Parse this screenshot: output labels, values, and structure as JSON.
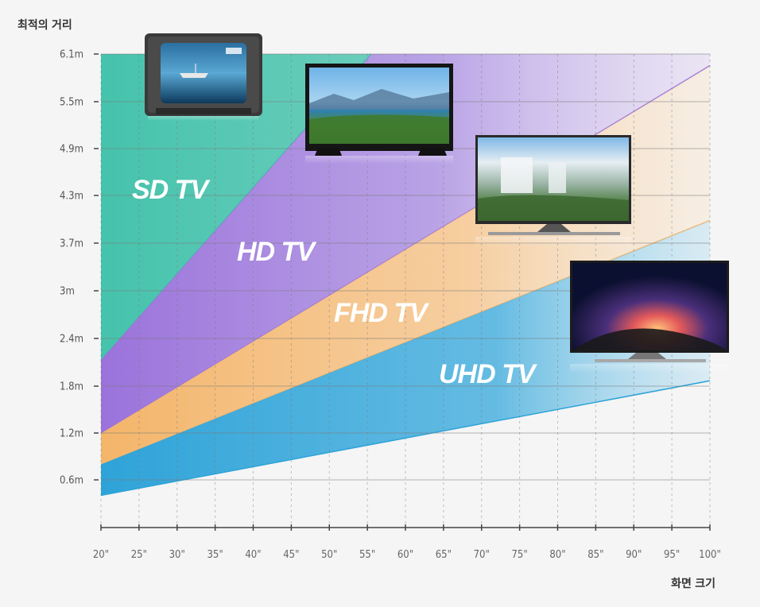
{
  "chart_data": {
    "type": "area",
    "ylabel": "최적의 거리",
    "xlabel": "화면 크기",
    "x_ticks": [
      "20\"",
      "25\"",
      "30\"",
      "35\"",
      "40\"",
      "45\"",
      "50\"",
      "55\"",
      "60\"",
      "65\"",
      "70\"",
      "75\"",
      "80\"",
      "85\"",
      "90\"",
      "95\"",
      "100\""
    ],
    "y_ticks": [
      "0.6m",
      "1.2m",
      "1.8m",
      "2.4m",
      "3m",
      "3.7m",
      "4.3m",
      "4.9m",
      "5.5m",
      "6.1m"
    ],
    "xlim": [
      20,
      100
    ],
    "ylim": [
      0,
      6.1
    ],
    "zones": [
      {
        "name": "SD TV",
        "color": "#3cc0a8",
        "upper": [
          [
            20,
            6.1
          ],
          [
            100,
            6.1
          ]
        ],
        "lower": [
          [
            20,
            2.15
          ],
          [
            55.5,
            6.1
          ]
        ]
      },
      {
        "name": "HD TV",
        "color": "#9b72db",
        "upper": [
          [
            20,
            2.15
          ],
          [
            55.5,
            6.1
          ],
          [
            100,
            6.1
          ]
        ],
        "lower": [
          [
            20,
            1.2
          ],
          [
            100,
            5.95
          ]
        ]
      },
      {
        "name": "FHD TV",
        "color": "#f4b56a",
        "upper": [
          [
            20,
            1.2
          ],
          [
            100,
            5.95
          ]
        ],
        "lower": [
          [
            20,
            0.8
          ],
          [
            100,
            3.95
          ]
        ]
      },
      {
        "name": "UHD TV",
        "color": "#2ea3d8",
        "upper": [
          [
            20,
            0.8
          ],
          [
            100,
            3.95
          ]
        ],
        "lower": [
          [
            20,
            0.4
          ],
          [
            100,
            1.88
          ]
        ]
      }
    ],
    "grid": true
  },
  "tv_images": [
    {
      "name": "sd-tv-image",
      "kind": "crt"
    },
    {
      "name": "hd-tv-image",
      "kind": "flat"
    },
    {
      "name": "fhd-tv-image",
      "kind": "flat-waterfall"
    },
    {
      "name": "uhd-tv-image",
      "kind": "flat-galaxy"
    }
  ]
}
